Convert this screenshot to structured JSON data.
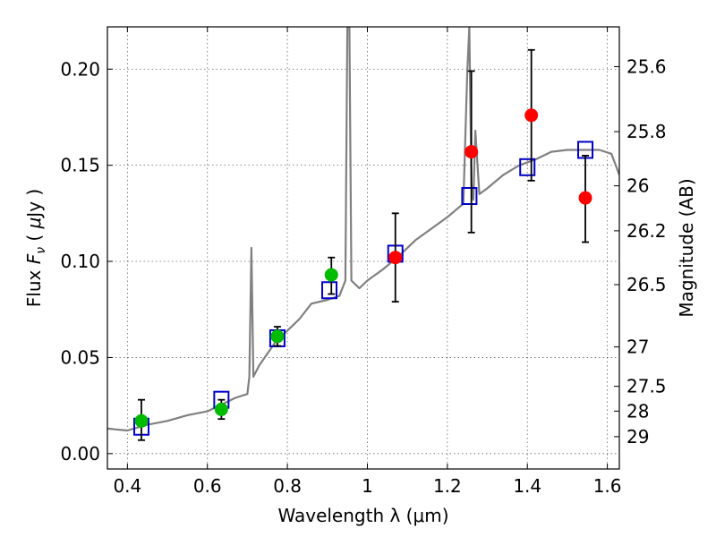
{
  "chart_data": {
    "type": "scatter",
    "title": "",
    "xlabel": "Wavelength  λ (μm)",
    "ylabel_left": "Flux  Fν  ( μJy )",
    "ylabel_right": "Magnitude (AB)",
    "xlim": [
      0.35,
      1.63
    ],
    "ylim": [
      -0.008,
      0.222
    ],
    "x_ticks": [
      0.4,
      0.6,
      0.8,
      1.0,
      1.2,
      1.4,
      1.6
    ],
    "x_tick_labels": [
      "0.4",
      "0.6",
      "0.8",
      "1",
      "1.2",
      "1.4",
      "1.6"
    ],
    "y_ticks": [
      0.0,
      0.05,
      0.1,
      0.15,
      0.2
    ],
    "y_tick_labels": [
      "0.00",
      "0.05",
      "0.10",
      "0.15",
      "0.20"
    ],
    "right_ticks": [
      {
        "label": "25.6",
        "flux": 0.2013
      },
      {
        "label": "25.8",
        "flux": 0.1675
      },
      {
        "label": "26",
        "flux": 0.1393
      },
      {
        "label": "26.2",
        "flux": 0.1159
      },
      {
        "label": "26.5",
        "flux": 0.0879
      },
      {
        "label": "27",
        "flux": 0.0555
      },
      {
        "label": "27.5",
        "flux": 0.035
      },
      {
        "label": "28",
        "flux": 0.0221
      },
      {
        "label": "29",
        "flux": 0.0088
      }
    ],
    "grid": true,
    "series": [
      {
        "name": "model spectrum",
        "kind": "line",
        "color": "#808080",
        "points": [
          [
            0.35,
            0.013
          ],
          [
            0.4,
            0.012
          ],
          [
            0.45,
            0.015
          ],
          [
            0.5,
            0.017
          ],
          [
            0.55,
            0.02
          ],
          [
            0.6,
            0.022
          ],
          [
            0.64,
            0.026
          ],
          [
            0.67,
            0.029
          ],
          [
            0.7,
            0.031
          ],
          [
            0.705,
            0.04
          ],
          [
            0.71,
            0.107
          ],
          [
            0.715,
            0.04
          ],
          [
            0.73,
            0.046
          ],
          [
            0.75,
            0.052
          ],
          [
            0.77,
            0.058
          ],
          [
            0.8,
            0.064
          ],
          [
            0.83,
            0.07
          ],
          [
            0.86,
            0.078
          ],
          [
            0.9,
            0.08
          ],
          [
            0.93,
            0.082
          ],
          [
            0.945,
            0.09
          ],
          [
            0.95,
            0.222
          ],
          [
            0.955,
            0.222
          ],
          [
            0.96,
            0.09
          ],
          [
            0.98,
            0.086
          ],
          [
            1.0,
            0.09
          ],
          [
            1.04,
            0.096
          ],
          [
            1.08,
            0.103
          ],
          [
            1.12,
            0.111
          ],
          [
            1.16,
            0.117
          ],
          [
            1.2,
            0.123
          ],
          [
            1.24,
            0.13
          ],
          [
            1.25,
            0.2
          ],
          [
            1.255,
            0.222
          ],
          [
            1.26,
            0.14
          ],
          [
            1.265,
            0.132
          ],
          [
            1.27,
            0.168
          ],
          [
            1.28,
            0.135
          ],
          [
            1.3,
            0.138
          ],
          [
            1.34,
            0.145
          ],
          [
            1.38,
            0.15
          ],
          [
            1.42,
            0.153
          ],
          [
            1.46,
            0.157
          ],
          [
            1.5,
            0.158
          ],
          [
            1.54,
            0.158
          ],
          [
            1.58,
            0.158
          ],
          [
            1.61,
            0.156
          ],
          [
            1.63,
            0.145
          ]
        ]
      },
      {
        "name": "synthetic photometry",
        "kind": "open-square",
        "color": "#0000cc",
        "points": [
          [
            0.435,
            0.014
          ],
          [
            0.635,
            0.028
          ],
          [
            0.775,
            0.06
          ],
          [
            0.905,
            0.085
          ],
          [
            1.07,
            0.104
          ],
          [
            1.255,
            0.134
          ],
          [
            1.4,
            0.149
          ],
          [
            1.545,
            0.158
          ]
        ]
      },
      {
        "name": "optical photometry",
        "kind": "filled-circle",
        "color": "#00bb00",
        "points": [
          {
            "x": 0.435,
            "y": 0.017,
            "err_lo": 0.01,
            "err_hi": 0.011
          },
          {
            "x": 0.635,
            "y": 0.023,
            "err_lo": 0.005,
            "err_hi": 0.005
          },
          {
            "x": 0.775,
            "y": 0.061,
            "err_lo": 0.005,
            "err_hi": 0.005
          },
          {
            "x": 0.91,
            "y": 0.093,
            "err_lo": 0.01,
            "err_hi": 0.009
          }
        ]
      },
      {
        "name": "near-infrared photometry",
        "kind": "filled-circle",
        "color": "#ff0000",
        "points": [
          {
            "x": 1.07,
            "y": 0.102,
            "err_lo": 0.023,
            "err_hi": 0.023
          },
          {
            "x": 1.26,
            "y": 0.157,
            "err_lo": 0.042,
            "err_hi": 0.042
          },
          {
            "x": 1.41,
            "y": 0.176,
            "err_lo": 0.034,
            "err_hi": 0.034
          },
          {
            "x": 1.545,
            "y": 0.133,
            "err_lo": 0.023,
            "err_hi": 0.022
          }
        ]
      }
    ]
  }
}
